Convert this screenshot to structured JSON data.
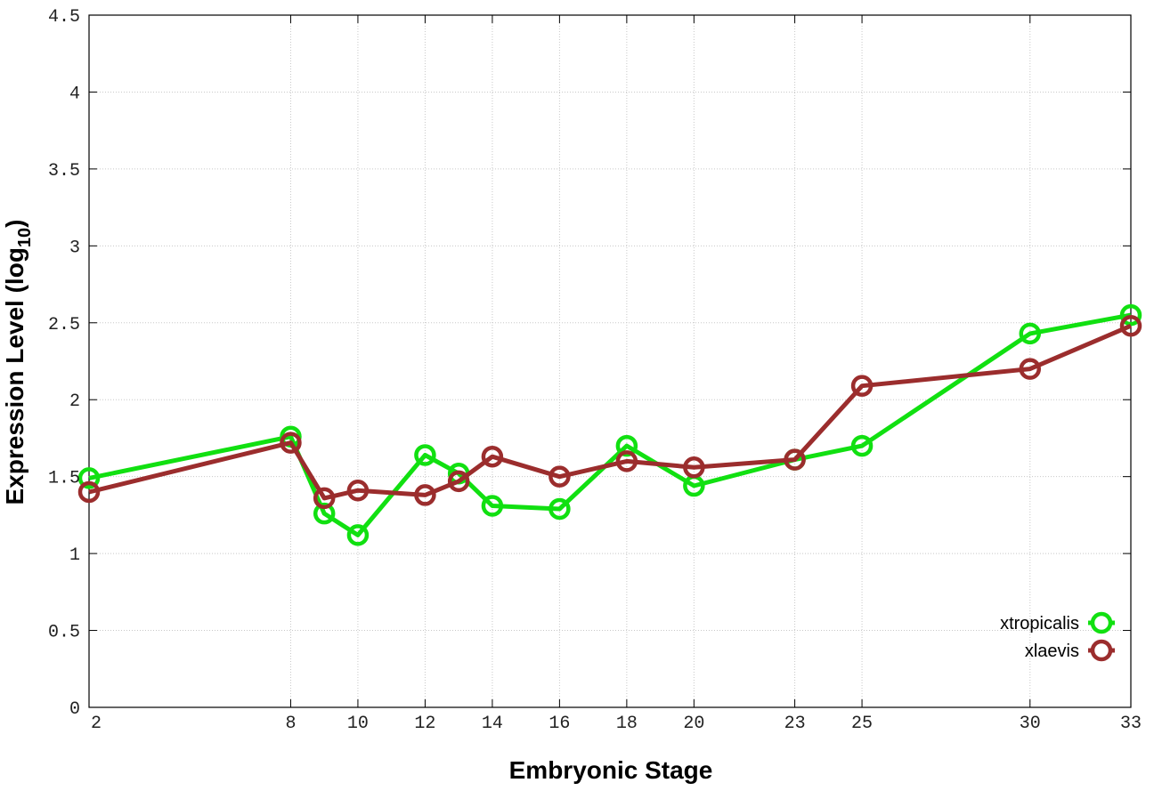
{
  "chart_data": {
    "type": "line",
    "xlabel": "Embryonic Stage",
    "ylabel": "Expression Level (log",
    "ylabel_subscript": "10",
    "ylabel_close": ")",
    "x": [
      2,
      8,
      9,
      10,
      12,
      13,
      14,
      16,
      18,
      20,
      23,
      25,
      30,
      33
    ],
    "x_ticks": [
      2,
      8,
      10,
      12,
      14,
      16,
      18,
      20,
      23,
      25,
      30,
      33
    ],
    "x_tick_labels": [
      "2",
      "8",
      "10",
      "12",
      "14",
      "16",
      "18",
      "20",
      "23",
      "25",
      "30",
      "33"
    ],
    "y_ticks": [
      0,
      0.5,
      1,
      1.5,
      2,
      2.5,
      3,
      3.5,
      4,
      4.5
    ],
    "y_tick_labels": [
      "0",
      "0.5",
      "1",
      "1.5",
      "2",
      "2.5",
      "3",
      "3.5",
      "4",
      "4.5"
    ],
    "ylim": [
      0,
      4.5
    ],
    "xlim": [
      2,
      33
    ],
    "grid": true,
    "legend_position": "bottom-right",
    "series": [
      {
        "name": "xtropicalis",
        "color": "#11e011",
        "values": [
          1.49,
          1.76,
          1.26,
          1.12,
          1.64,
          1.52,
          1.31,
          1.29,
          1.7,
          1.44,
          1.61,
          1.7,
          2.43,
          2.55
        ]
      },
      {
        "name": "xlaevis",
        "color": "#9b2d2d",
        "values": [
          1.4,
          1.72,
          1.36,
          1.41,
          1.38,
          1.47,
          1.63,
          1.5,
          1.6,
          1.56,
          1.61,
          2.09,
          2.2,
          2.48
        ]
      }
    ]
  }
}
